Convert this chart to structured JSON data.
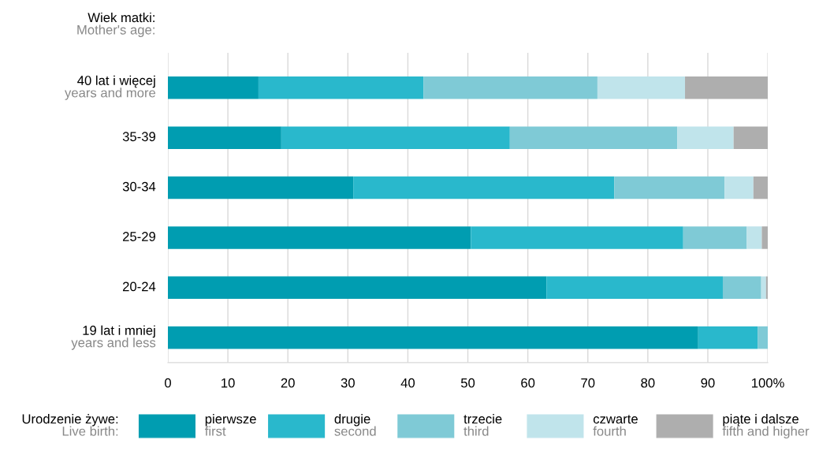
{
  "chart_data": {
    "type": "bar",
    "orientation": "horizontal",
    "stacked": true,
    "ylabel": "Wiek matki:\nMother's age:",
    "legend_title": "Urodzenie żywe:\nLive birth:",
    "legend": "bottom",
    "grid": "x",
    "categories": [
      "40 lat i więcej\nyears and more",
      "35-39",
      "30-34",
      "25-29",
      "20-24",
      "19 lat i mniej\nyears and less"
    ],
    "xlim": [
      0,
      100
    ],
    "xticks": [
      0,
      10,
      20,
      30,
      40,
      50,
      60,
      70,
      80,
      90,
      {
        "value": 100,
        "label": "100%"
      }
    ],
    "series": [
      {
        "name": "pierwsze\nfirst",
        "color": "#009db1",
        "values": [
          15.1,
          18.9,
          30.9,
          50.5,
          63.1,
          88.4
        ]
      },
      {
        "name": "drugie\nsecond",
        "color": "#29b8cc",
        "values": [
          27.5,
          38.1,
          43.5,
          35.4,
          29.4,
          9.9
        ]
      },
      {
        "name": "trzecie\nthird",
        "color": "#7fcad6",
        "values": [
          29.0,
          27.9,
          18.4,
          10.6,
          6.4,
          1.7
        ]
      },
      {
        "name": "czwarte\nfourth",
        "color": "#c0e4eb",
        "values": [
          14.6,
          9.4,
          4.8,
          2.5,
          0.8,
          0
        ]
      },
      {
        "name": "piąte i dalsze\nfifth and higher",
        "color": "#aeaeae",
        "values": [
          13.8,
          5.7,
          2.4,
          1.0,
          0.3,
          0
        ]
      }
    ]
  }
}
